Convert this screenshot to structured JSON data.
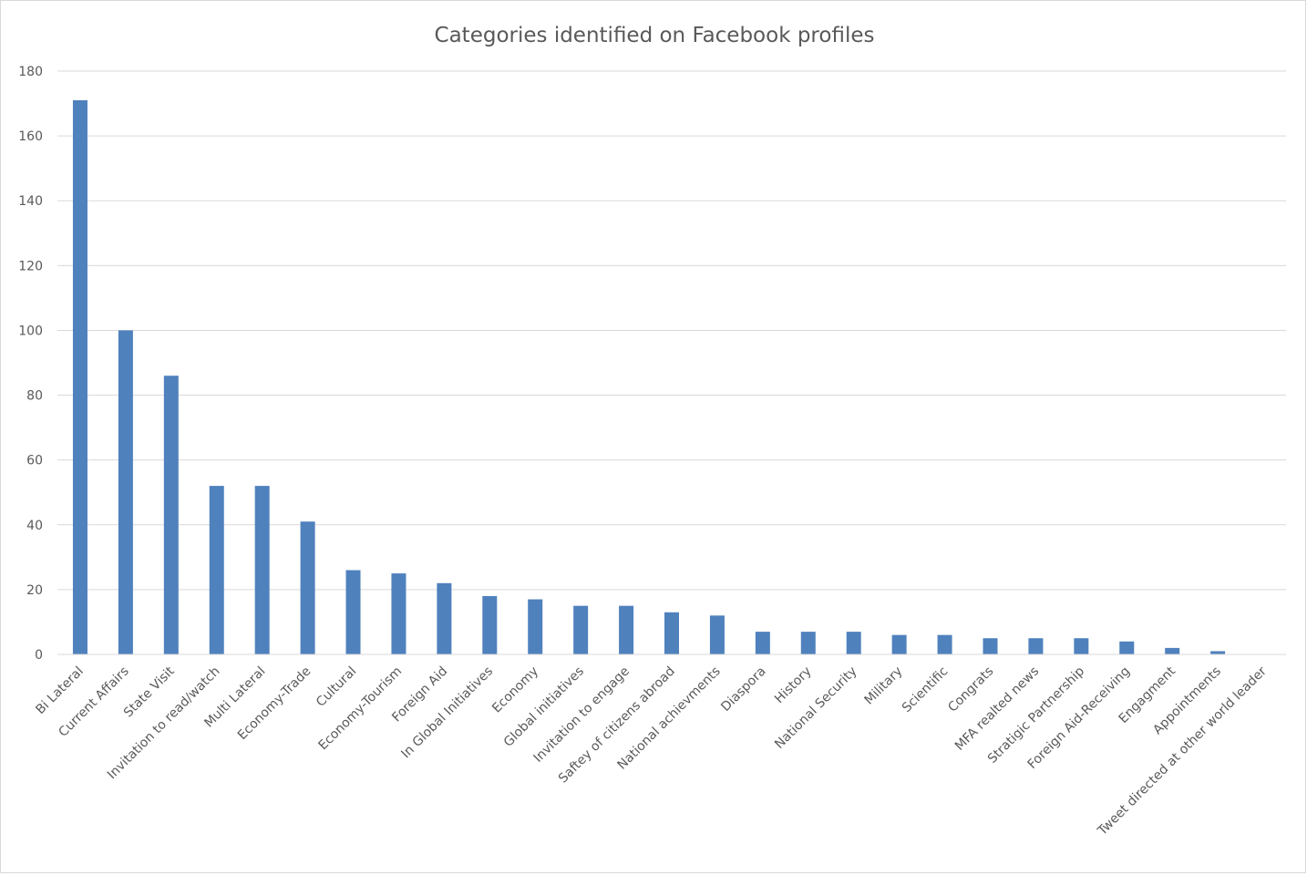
{
  "chart_data": {
    "type": "bar",
    "title": "Categories identified on Facebook profiles",
    "xlabel": "",
    "ylabel": "",
    "ylim": [
      0,
      180
    ],
    "yticks": [
      0,
      20,
      40,
      60,
      80,
      100,
      120,
      140,
      160,
      180
    ],
    "grid": true,
    "legend": "none",
    "bar_color": "#4f81bd",
    "categories": [
      "Bi Lateral",
      "Current Affairs",
      "State Visit",
      "Invitation to read/watch",
      "Multi Lateral",
      "Economy-Trade",
      "Cultural",
      "Economy-Tourism",
      "Foreign Aid",
      "In Global Initiatives",
      "Economy",
      "Global initiatives",
      "Invitation to engage",
      "Saftey of citizens abroad",
      "National achievments",
      "Diaspora",
      "History",
      "National Security",
      "Military",
      "Scientific",
      "Congrats",
      "MFA realted news",
      "Stratigic Partnership",
      "Foreign Aid-Receiving",
      "Engagment",
      "Appointments",
      "Tweet directed at other world leader"
    ],
    "values": [
      171,
      100,
      86,
      52,
      52,
      41,
      26,
      25,
      22,
      18,
      17,
      15,
      15,
      13,
      12,
      7,
      7,
      7,
      6,
      6,
      5,
      5,
      5,
      4,
      2,
      1,
      0
    ]
  }
}
